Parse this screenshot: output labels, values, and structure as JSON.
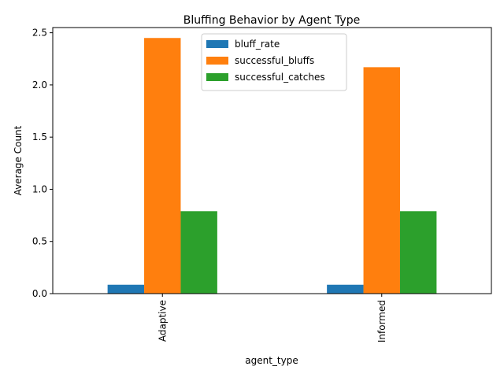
{
  "chart_data": {
    "type": "bar",
    "title": "Bluffing Behavior by Agent Type",
    "xlabel": "agent_type",
    "ylabel": "Average Count",
    "categories": [
      "Adaptive",
      "Informed"
    ],
    "ylim": [
      0,
      2.55
    ],
    "yticks": [
      0.0,
      0.5,
      1.0,
      1.5,
      2.0,
      2.5
    ],
    "ytick_labels": [
      "0.0",
      "0.5",
      "1.0",
      "1.5",
      "2.0",
      "2.5"
    ],
    "grid": false,
    "legend_position": "top-center",
    "series": [
      {
        "name": "bluff_rate",
        "color": "#1f77b4",
        "values": [
          0.085,
          0.085
        ]
      },
      {
        "name": "successful_bluffs",
        "color": "#ff7f0e",
        "values": [
          2.45,
          2.17
        ]
      },
      {
        "name": "successful_catches",
        "color": "#2ca02c",
        "values": [
          0.79,
          0.79
        ]
      }
    ]
  }
}
